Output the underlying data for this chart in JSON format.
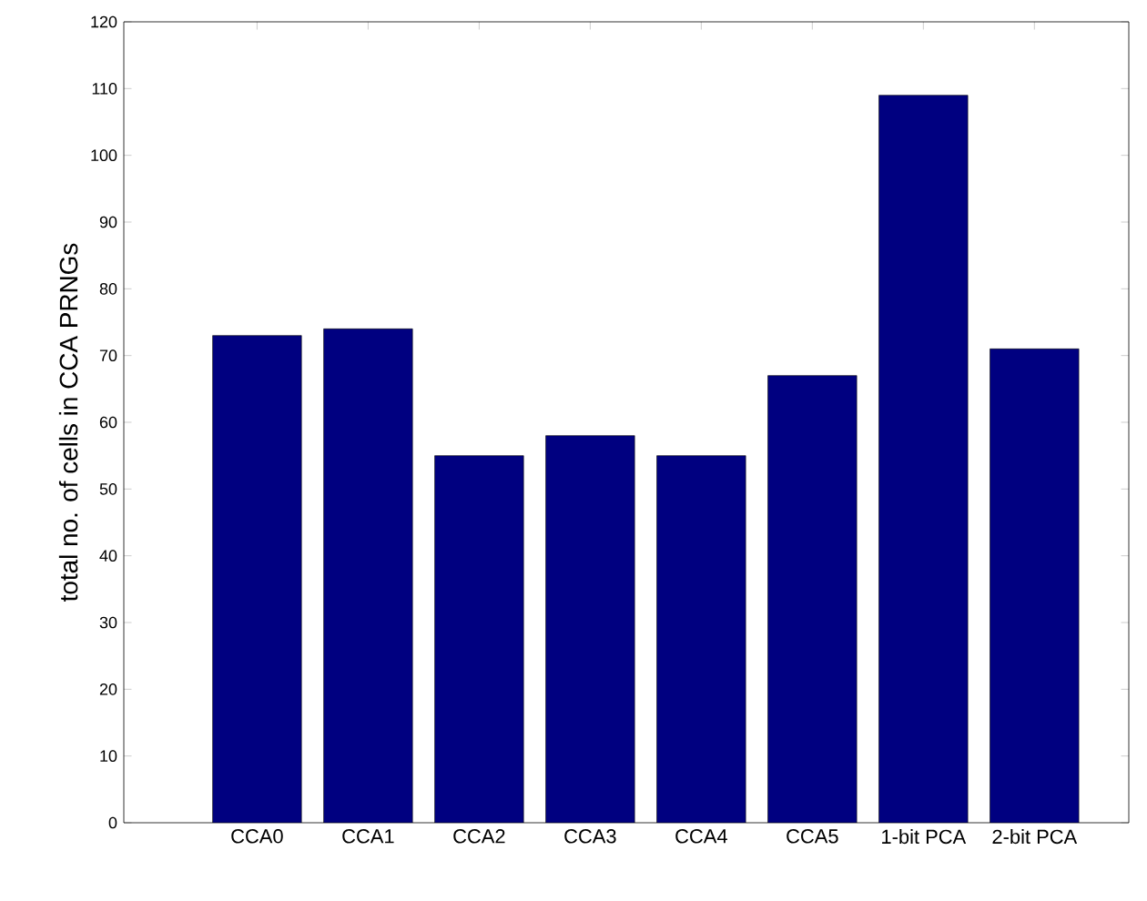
{
  "chart_data": {
    "type": "bar",
    "ylabel": "total no. of cells in CCA PRNGs",
    "categories": [
      "CCA0",
      "CCA1",
      "CCA2",
      "CCA3",
      "CCA4",
      "CCA5",
      "1-bit PCA",
      "2-bit PCA"
    ],
    "values": [
      73,
      74,
      55,
      58,
      55,
      67,
      109,
      71
    ],
    "color": "#000080",
    "ylim": [
      0,
      120
    ],
    "yticks": [
      0,
      10,
      20,
      30,
      40,
      50,
      60,
      70,
      80,
      90,
      100,
      110,
      120
    ]
  }
}
